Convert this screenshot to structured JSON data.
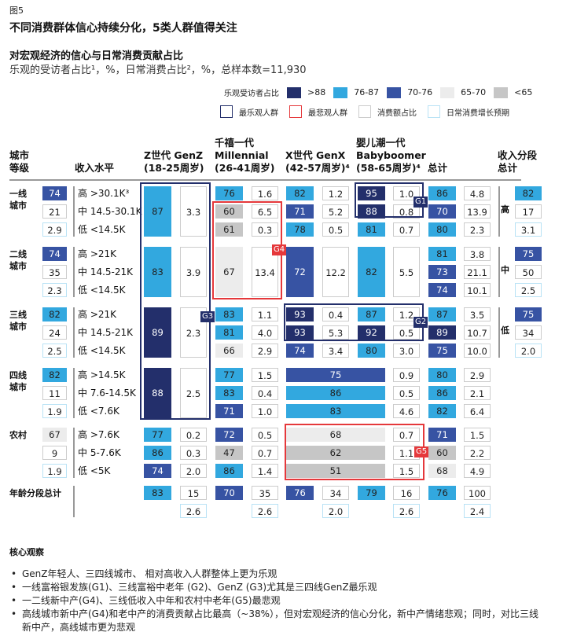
{
  "header": {
    "figure_label": "图5",
    "title": "不同消费群体信心持续分化，5类人群值得关注",
    "subtitle": "对宏观经济的信心与日常消费贡献占比",
    "description": "乐观的受访者占比¹，%，日常消费占比²，%，总样本数=11,930"
  },
  "legend": {
    "scale_title": "乐观受访者占比",
    "scale": [
      {
        "label": ">88",
        "color": "#232f6b"
      },
      {
        "label": "76-87",
        "color": "#32a8df"
      },
      {
        "label": "70-76",
        "color": "#3753a3"
      },
      {
        "label": "65-70",
        "color": "#ececec"
      },
      {
        "label": "<65",
        "color": "#c6c6c6"
      }
    ],
    "boxes": [
      {
        "label": "最乐观人群",
        "color": "#232f6b"
      },
      {
        "label": "最悲观人群",
        "color": "#e5383b"
      },
      {
        "label": "消费额占比",
        "color": "#cccccc"
      },
      {
        "label": "日常消费增长预期",
        "color": "#b9e2f5"
      }
    ]
  },
  "columns": {
    "city_tier_1": "城市",
    "city_tier_2": "等级",
    "income_level": "收入水平",
    "genz_1": "Z世代 GenZ",
    "genz_2": "(18-25周岁)",
    "mill_0": "千禧一代",
    "mill_1": "Millennial",
    "mill_2": "(26-41周岁)",
    "genx_1": "X世代 GenX",
    "genx_2": "(42-57周岁)⁴",
    "boom_0": "婴儿潮一代",
    "boom_1": "Babyboomer",
    "boom_2": "(58-65周岁)⁴",
    "total": "总计",
    "income_total_1": "收入分段",
    "income_total_2": "总计"
  },
  "chart_data": {
    "type": "table",
    "title": "对宏观经济的信心与日常消费贡献占比",
    "color_scale": {
      ">88": "#232f6b",
      "76-87": "#32a8df",
      "70-76": "#3753a3",
      "65-70": "#ececec",
      "<65": "#c6c6c6"
    },
    "tiers": [
      {
        "name": "一线城市",
        "line1": "一线",
        "line2": "城市",
        "tier_opt": "74",
        "tier_opt_class": "c-mid",
        "tier_share": "21",
        "tier_growth": "2.9",
        "incomes": [
          "高 >30.1K³",
          "中 14.5-30.1K",
          "低 <14.5K"
        ],
        "genz": {
          "merged": true,
          "opt": "87",
          "opt_class": "c-light",
          "share": "3.3"
        },
        "mill": [
          {
            "opt": "76",
            "c": "c-light",
            "share": "1.6"
          },
          {
            "opt": "60",
            "c": "c-gray",
            "share": "6.5"
          },
          {
            "opt": "61",
            "c": "c-gray",
            "share": "0.3"
          }
        ],
        "genx": [
          {
            "opt": "82",
            "c": "c-light",
            "share": "1.2"
          },
          {
            "opt": "71",
            "c": "c-mid",
            "share": "5.2"
          },
          {
            "opt": "78",
            "c": "c-light",
            "share": "0.5"
          }
        ],
        "boom": [
          {
            "opt": "95",
            "c": "c-dark",
            "share": "1.0"
          },
          {
            "opt": "88",
            "c": "c-dark",
            "share": "0.8"
          },
          {
            "opt": "81",
            "c": "c-light",
            "share": "0.7"
          }
        ],
        "total": [
          {
            "opt": "86",
            "c": "c-light",
            "share": "4.8"
          },
          {
            "opt": "70",
            "c": "c-mid",
            "share": "13.9"
          },
          {
            "opt": "80",
            "c": "c-light",
            "share": "2.3"
          }
        ]
      },
      {
        "name": "二线城市",
        "line1": "二线",
        "line2": "城市",
        "tier_opt": "74",
        "tier_opt_class": "c-mid",
        "tier_share": "35",
        "tier_growth": "2.3",
        "incomes": [
          "高 >21K",
          "中 14.5-21K",
          "低 <14.5K"
        ],
        "genz": {
          "merged": true,
          "opt": "83",
          "opt_class": "c-light",
          "share": "3.9"
        },
        "mill_merged": {
          "opt": "67",
          "c": "c-pale",
          "share": "13.4"
        },
        "genx_merged": {
          "opt": "72",
          "c": "c-mid",
          "share": "12.2"
        },
        "boom_merged": {
          "opt": "82",
          "c": "c-light",
          "share": "5.5"
        },
        "total": [
          {
            "opt": "81",
            "c": "c-light",
            "share": "3.8"
          },
          {
            "opt": "73",
            "c": "c-mid",
            "share": "21.1"
          },
          {
            "opt": "74",
            "c": "c-mid",
            "share": "10.1"
          }
        ]
      },
      {
        "name": "三线城市",
        "line1": "三线",
        "line2": "城市",
        "tier_opt": "82",
        "tier_opt_class": "c-light",
        "tier_share": "24",
        "tier_growth": "2.5",
        "incomes": [
          "高 >21K",
          "中 14.5-21K",
          "低 <14.5K"
        ],
        "genz": {
          "merged": true,
          "opt": "89",
          "opt_class": "c-dark",
          "share": "2.3"
        },
        "mill": [
          {
            "opt": "83",
            "c": "c-light",
            "share": "1.1"
          },
          {
            "opt": "81",
            "c": "c-light",
            "share": "4.0"
          },
          {
            "opt": "66",
            "c": "c-pale",
            "share": "2.9"
          }
        ],
        "genx": [
          {
            "opt": "93",
            "c": "c-dark",
            "share": "0.4"
          },
          {
            "opt": "93",
            "c": "c-dark",
            "share": "5.3"
          },
          {
            "opt": "74",
            "c": "c-mid",
            "share": "3.4"
          }
        ],
        "boom": [
          {
            "opt": "87",
            "c": "c-light",
            "share": "1.2"
          },
          {
            "opt": "92",
            "c": "c-dark",
            "share": "0.5"
          },
          {
            "opt": "80",
            "c": "c-light",
            "share": "3.0"
          }
        ],
        "total": [
          {
            "opt": "87",
            "c": "c-light",
            "share": "3.5"
          },
          {
            "opt": "89",
            "c": "c-dark",
            "share": "10.7"
          },
          {
            "opt": "75",
            "c": "c-mid",
            "share": "10.0"
          }
        ]
      },
      {
        "name": "四线城市",
        "line1": "四线",
        "line2": "城市",
        "tier_opt": "82",
        "tier_opt_class": "c-light",
        "tier_share": "11",
        "tier_growth": "1.9",
        "incomes": [
          "高 >14.5K",
          "中 7.6-14.5K",
          "低 <7.6K"
        ],
        "genz": {
          "merged": true,
          "opt": "88",
          "opt_class": "c-dark",
          "share": "2.5"
        },
        "mill": [
          {
            "opt": "77",
            "c": "c-light",
            "share": "1.5"
          },
          {
            "opt": "83",
            "c": "c-light",
            "share": "0.4"
          },
          {
            "opt": "71",
            "c": "c-mid",
            "share": "1.0"
          }
        ],
        "genx_boom_wide": [
          {
            "opt": "75",
            "c": "c-mid",
            "share": "0.9"
          },
          {
            "opt": "86",
            "c": "c-light",
            "share": "0.5"
          },
          {
            "opt": "83",
            "c": "c-light",
            "share": "4.6"
          }
        ],
        "total": [
          {
            "opt": "80",
            "c": "c-light",
            "share": "2.9"
          },
          {
            "opt": "86",
            "c": "c-light",
            "share": "2.1"
          },
          {
            "opt": "82",
            "c": "c-light",
            "share": "6.4"
          }
        ]
      },
      {
        "name": "农村",
        "line1": "农村",
        "line2": "",
        "tier_opt": "67",
        "tier_opt_class": "c-pale",
        "tier_share": "9",
        "tier_growth": "1.9",
        "incomes": [
          "高 >7.6K",
          "中 5-7.6K",
          "低 <5K"
        ],
        "genz_rows": [
          {
            "opt": "77",
            "c": "c-light",
            "share": "0.2"
          },
          {
            "opt": "86",
            "c": "c-light",
            "share": "0.3"
          },
          {
            "opt": "74",
            "c": "c-mid",
            "share": "2.0"
          }
        ],
        "mill": [
          {
            "opt": "72",
            "c": "c-mid",
            "share": "0.5"
          },
          {
            "opt": "47",
            "c": "c-gray",
            "share": "0.7"
          },
          {
            "opt": "86",
            "c": "c-light",
            "share": "1.4"
          }
        ],
        "genx_boom_wide": [
          {
            "opt": "68",
            "c": "c-pale",
            "share": "0.7"
          },
          {
            "opt": "62",
            "c": "c-gray",
            "share": "1.1"
          },
          {
            "opt": "51",
            "c": "c-gray",
            "share": "1.5"
          }
        ],
        "total": [
          {
            "opt": "71",
            "c": "c-mid",
            "share": "1.5"
          },
          {
            "opt": "60",
            "c": "c-gray",
            "share": "2.2"
          },
          {
            "opt": "68",
            "c": "c-pale",
            "share": "4.9"
          }
        ]
      }
    ],
    "age_totals": {
      "label": "年龄分段总计",
      "genz": {
        "opt": "83",
        "c": "c-light",
        "share": "15",
        "growth": "2.6"
      },
      "mill": {
        "opt": "70",
        "c": "c-mid",
        "share": "35",
        "growth": "2.6"
      },
      "genx": {
        "opt": "76",
        "c": "c-mid",
        "share": "34",
        "growth": "2.0"
      },
      "boom": {
        "opt": "79",
        "c": "c-light",
        "share": "16",
        "growth": "2.6"
      },
      "total": {
        "opt": "76",
        "c": "c-light",
        "share": "100",
        "growth": "2.4"
      }
    },
    "income_totals": [
      {
        "label": "高",
        "opt": "82",
        "c": "c-light",
        "share": "17",
        "growth": "3.1"
      },
      {
        "label": "中",
        "opt": "75",
        "c": "c-mid",
        "share": "50",
        "growth": "2.5"
      },
      {
        "label": "低",
        "opt": "75",
        "c": "c-mid",
        "share": "34",
        "growth": "2.0"
      }
    ],
    "groups": [
      {
        "tag": "G1",
        "type": "optimistic"
      },
      {
        "tag": "G2",
        "type": "optimistic"
      },
      {
        "tag": "G3",
        "type": "optimistic"
      },
      {
        "tag": "G4",
        "type": "pessimistic"
      },
      {
        "tag": "G5",
        "type": "pessimistic"
      }
    ]
  },
  "observations": {
    "title": "核心观察",
    "items": [
      "GenZ年轻人、三四线城市、 相对高收入人群整体上更为乐观",
      "一线富裕银发族(G1)、三线富裕中老年 (G2)、GenZ (G3)尤其是三四线GenZ最乐观",
      "一二线新中产(G4)、三线低收入中年和农村中老年(G5)最悲观",
      "高线城市新中产(G4)和老中产的消费贡献占比最高（~38%），但对宏观经济的信心分化，新中产情绪悲观；同时，对比三线新中产，高线城市更为悲观"
    ]
  }
}
